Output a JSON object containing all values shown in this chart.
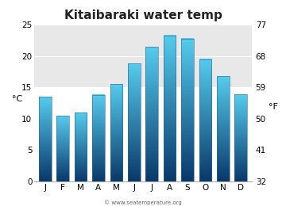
{
  "title": "Kitaibaraki water temp",
  "months": [
    "J",
    "F",
    "M",
    "A",
    "M",
    "J",
    "J",
    "A",
    "S",
    "O",
    "N",
    "D"
  ],
  "values_c": [
    13.5,
    10.5,
    11.0,
    13.8,
    15.5,
    18.8,
    21.5,
    23.3,
    22.8,
    19.5,
    16.8,
    13.9
  ],
  "ylim_c": [
    0,
    25
  ],
  "yticks_c": [
    0,
    5,
    10,
    15,
    20,
    25
  ],
  "yticks_f": [
    32,
    41,
    50,
    59,
    68,
    77
  ],
  "ylabel_left": "°C",
  "ylabel_right": "°F",
  "bar_color_top": "#55ccee",
  "bar_color_bottom": "#08386a",
  "fig_bg": "#ffffff",
  "plot_bg_lower": "#ffffff",
  "plot_bg_upper": "#e8e8e8",
  "band_threshold": 15,
  "watermark": "© www.seatemperature.org",
  "title_fontsize": 11,
  "tick_fontsize": 7.5,
  "label_fontsize": 8
}
